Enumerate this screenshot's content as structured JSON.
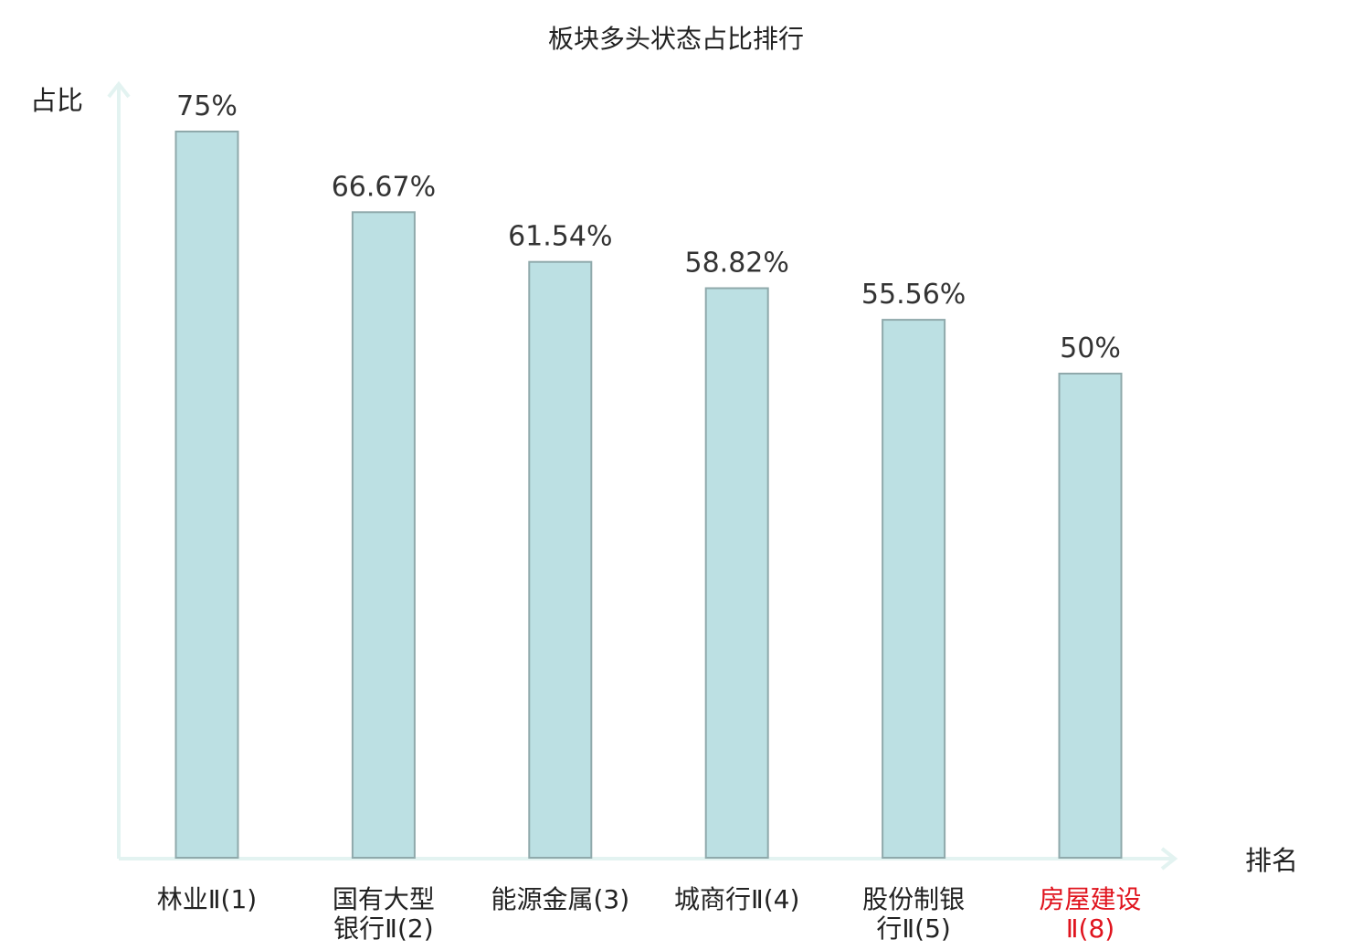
{
  "chart_data": {
    "type": "bar",
    "title": "板块多头状态占比排行",
    "ylabel": "占比",
    "xlabel": "排名",
    "ylim": [
      0,
      0.8
    ],
    "grid": false,
    "categories": [
      {
        "lines": [
          "林业Ⅱ(1)"
        ],
        "highlight": false
      },
      {
        "lines": [
          "国有大型",
          "银行Ⅱ(2)"
        ],
        "highlight": false
      },
      {
        "lines": [
          "能源金属(3)"
        ],
        "highlight": false
      },
      {
        "lines": [
          "城商行Ⅱ(4)"
        ],
        "highlight": false
      },
      {
        "lines": [
          "股份制银",
          "行Ⅱ(5)"
        ],
        "highlight": false
      },
      {
        "lines": [
          "房屋建设",
          "Ⅱ(8)"
        ],
        "highlight": true
      }
    ],
    "values": [
      0.75,
      0.6667,
      0.6154,
      0.5882,
      0.5556,
      0.5
    ],
    "value_labels": [
      "75%",
      "66.67%",
      "61.54%",
      "58.82%",
      "55.56%",
      "50%"
    ]
  },
  "colors": {
    "bar_fill": "#bce0e3",
    "bar_stroke": "#8fa9ab",
    "axis": "#e3f3f1",
    "highlight_text": "#e0141e"
  }
}
